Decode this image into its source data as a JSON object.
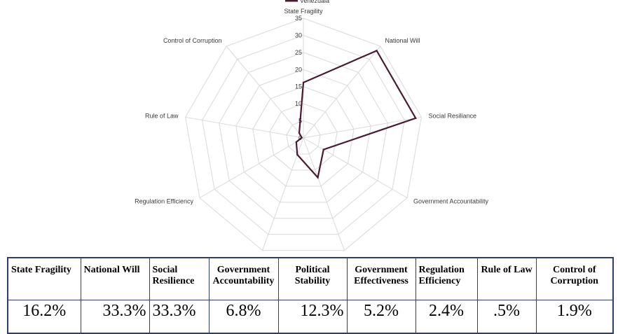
{
  "chart_data": {
    "type": "radar",
    "title": "",
    "legend": [
      "Venezuala"
    ],
    "legend_position": "top",
    "axes": [
      "State Fragility",
      "National Will",
      "Social Resiliance",
      "Government Accountability",
      "Political Stability",
      "Government Effectiveness",
      "Regulation Efficiency",
      "Rule of Law",
      "Control of Corruption"
    ],
    "ticks": [
      "0",
      "5",
      "10",
      "15",
      "20",
      "25",
      "30",
      "35"
    ],
    "range": [
      0,
      35
    ],
    "series": [
      {
        "name": "Venezuala",
        "values": [
          16.2,
          33.3,
          33.3,
          6.8,
          12.3,
          5.2,
          2.4,
          0.5,
          1.9
        ],
        "color": "#4a1a33"
      }
    ]
  },
  "table": {
    "headers": [
      "State Fragility",
      "National Will",
      "Social Resilience",
      "Government Accountability",
      "Political Stability",
      "Government Effectiveness",
      "Regulation Efficiency",
      "Rule of Law",
      "Control of Corruption"
    ],
    "values": [
      "16.2%",
      "33.3%",
      "33.3%",
      "6.8%",
      "12.3%",
      "5.2%",
      "2.4%",
      ".5%",
      "1.9%"
    ]
  },
  "colors": {
    "series": "#4a1a33",
    "grid": "#d9d9d9",
    "table_border": "#2f3d6b"
  }
}
